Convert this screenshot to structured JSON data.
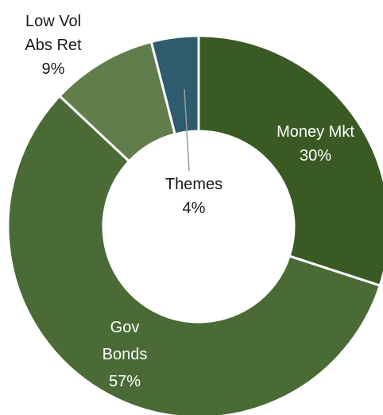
{
  "chart_data": {
    "type": "pie",
    "subtype": "donut",
    "title": "",
    "series": [
      {
        "name": "Money Mkt",
        "label_lines": [
          "Money Mkt",
          "30%"
        ],
        "value": 30,
        "color": "#3a5a23"
      },
      {
        "name": "Gov Bonds",
        "label_lines": [
          "Gov",
          "Bonds",
          "57%"
        ],
        "value": 57,
        "color": "#4a6b35"
      },
      {
        "name": "Low Vol Abs Ret",
        "label_lines": [
          "Low Vol",
          "Abs Ret",
          "9%"
        ],
        "value": 9,
        "color": "#617d4b"
      },
      {
        "name": "Themes",
        "label_lines": [
          "Themes",
          "4%"
        ],
        "value": 4,
        "color": "#2f5b6e"
      }
    ],
    "legend": "none",
    "label_colors": {
      "inside": "#ffffff",
      "outside": "#1a1a1a"
    }
  }
}
